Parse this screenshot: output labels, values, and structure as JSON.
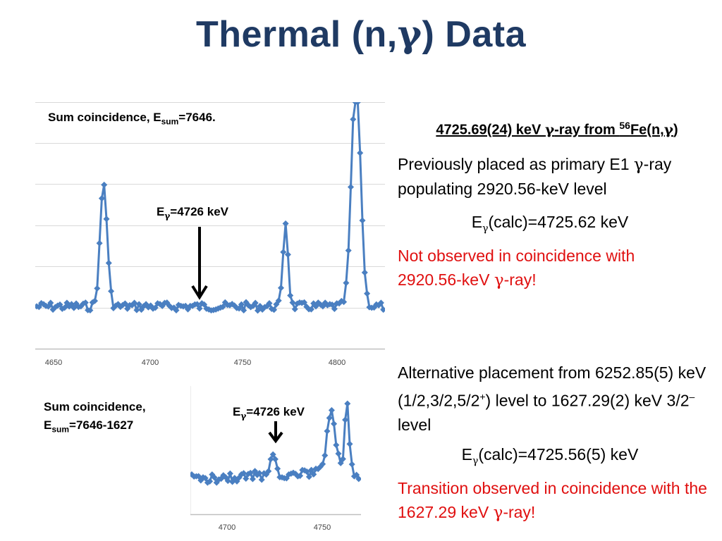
{
  "slide": {
    "title_a": "Thermal (n,",
    "title_gamma": "γ",
    "title_b": ") Data"
  },
  "top_plot": {
    "label_a": "Sum coincidence, E",
    "label_sub": "sum",
    "label_b": "=7646.",
    "arrow_label_a": "E",
    "arrow_label_sub": "γ",
    "arrow_label_b": "=4726 keV",
    "xticks": [
      "4650",
      "4700",
      "4750",
      "4800"
    ]
  },
  "bottom_plot": {
    "label_line1": "Sum coincidence,",
    "label_a": "E",
    "label_sub": "sum",
    "label_b": "=7646-1627",
    "arrow_label_a": "E",
    "arrow_label_sub": "γ",
    "arrow_label_b": "=4726 keV",
    "xticks": [
      "4700",
      "4750"
    ]
  },
  "right": {
    "heading_a": "4725.69(24) keV ",
    "heading_gamma": "γ",
    "heading_b": "-ray from ",
    "heading_sup": "56",
    "heading_c": "Fe(n,",
    "heading_gamma2": "γ",
    "heading_d": ")",
    "p1_a": "Previously placed as primary E1 ",
    "p1_gamma": "γ",
    "p1_b": "-ray populating 2920.56-keV level",
    "calc1_a": "E",
    "calc1_sub": "γ",
    "calc1_b": "(calc)=4725.62 keV",
    "red1_a": "Not observed in coincidence with 2920.56-keV ",
    "red1_gamma": "γ",
    "red1_b": "-ray!",
    "p2_a": "Alternative placement from 6252.85(5) keV (1/2,3/2,5/2",
    "p2_sup1": "+",
    "p2_b": ") level to 1627.29(2) keV 3/2",
    "p2_sup2": "–",
    "p2_c": " level",
    "calc2_a": "E",
    "calc2_sub": "γ",
    "calc2_b": "(calc)=4725.56(5) keV",
    "red2_a": "Transition observed in coincidence with the 1627.29 keV ",
    "red2_gamma": "γ",
    "red2_b": "-ray!"
  },
  "colors": {
    "title": "#1f3a63",
    "series": "#4a7fc1",
    "emphasis": "#e01010"
  }
}
